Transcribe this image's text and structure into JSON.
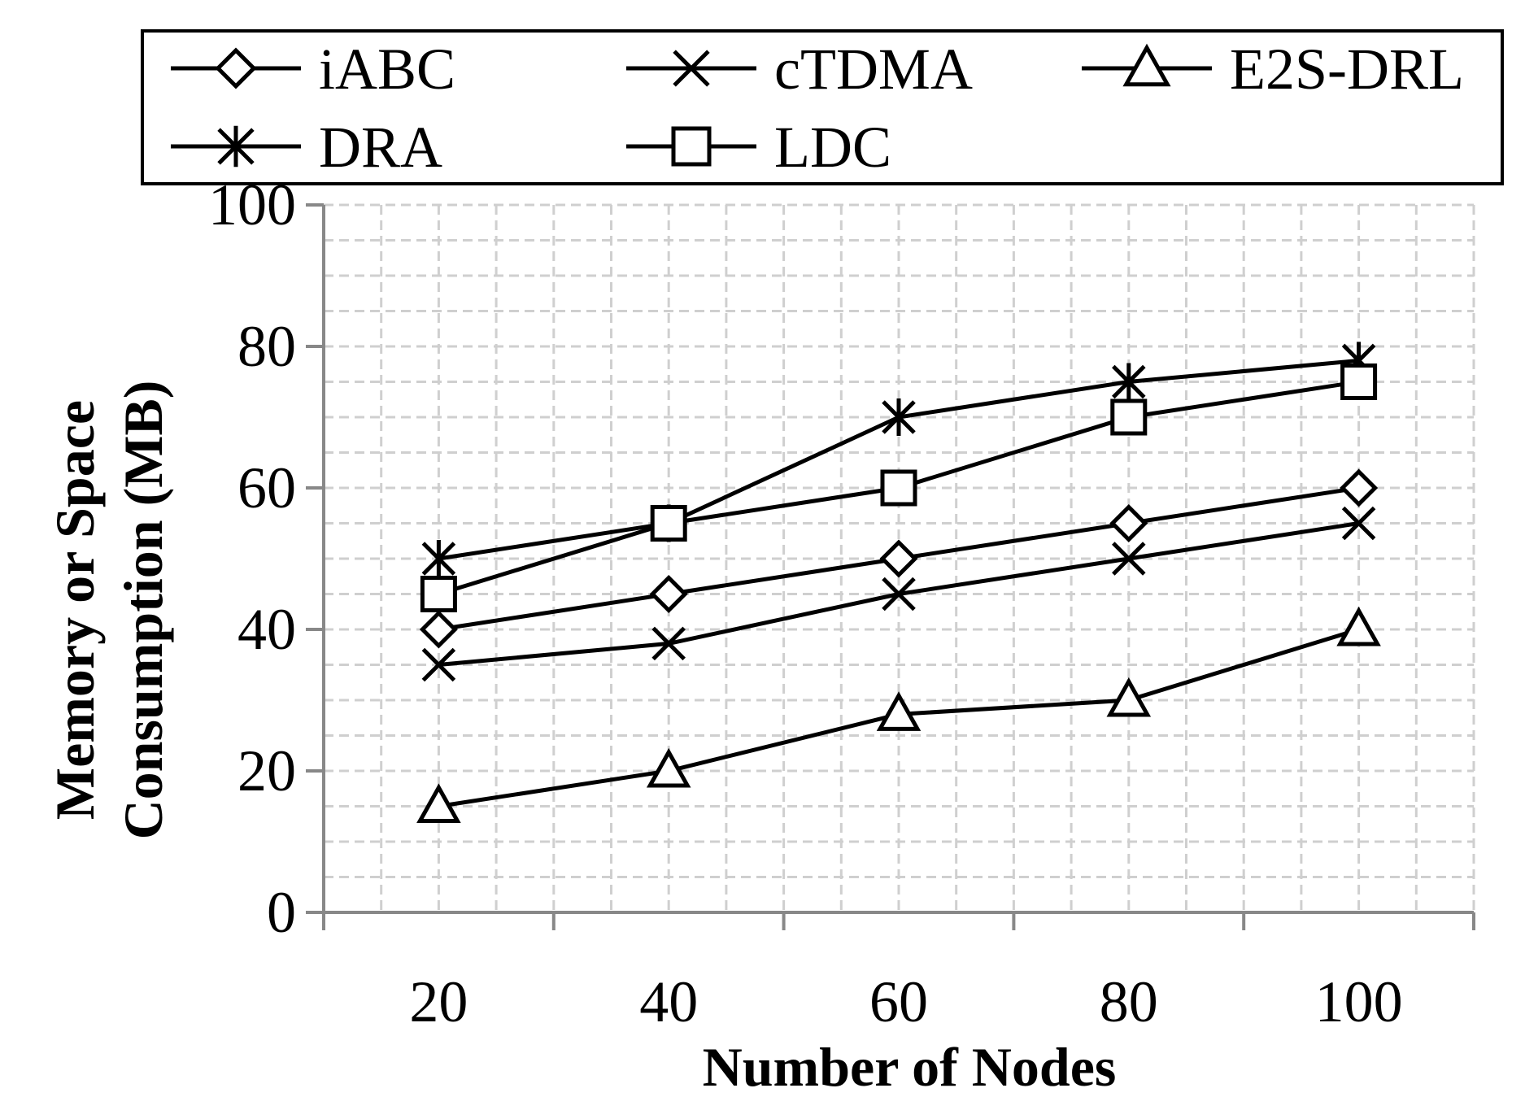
{
  "chart_data": {
    "type": "line",
    "title": "",
    "xlabel": "Number of Nodes",
    "ylabel_lines": [
      "Memory or Space",
      "Consumption (MB)"
    ],
    "categories": [
      "20",
      "40",
      "60",
      "80",
      "100"
    ],
    "ylim": [
      0,
      100
    ],
    "yticks": [
      "0",
      "20",
      "40",
      "60",
      "80",
      "100"
    ],
    "grid": true,
    "legend_position": "top",
    "series": [
      {
        "name": "iABC",
        "marker": "diamond",
        "values": [
          40,
          45,
          50,
          55,
          60
        ]
      },
      {
        "name": "cTDMA",
        "marker": "x",
        "values": [
          35,
          38,
          45,
          50,
          55
        ]
      },
      {
        "name": "E2S-DRL",
        "marker": "triangle",
        "values": [
          15,
          20,
          28,
          30,
          40
        ]
      },
      {
        "name": "DRA",
        "marker": "asterisk",
        "values": [
          50,
          55,
          70,
          75,
          78
        ]
      },
      {
        "name": "LDC",
        "marker": "square",
        "values": [
          45,
          55,
          60,
          70,
          75
        ]
      }
    ],
    "colors": {
      "line": "#000000",
      "grid": "#cfcfcf",
      "axis": "#888888"
    }
  }
}
